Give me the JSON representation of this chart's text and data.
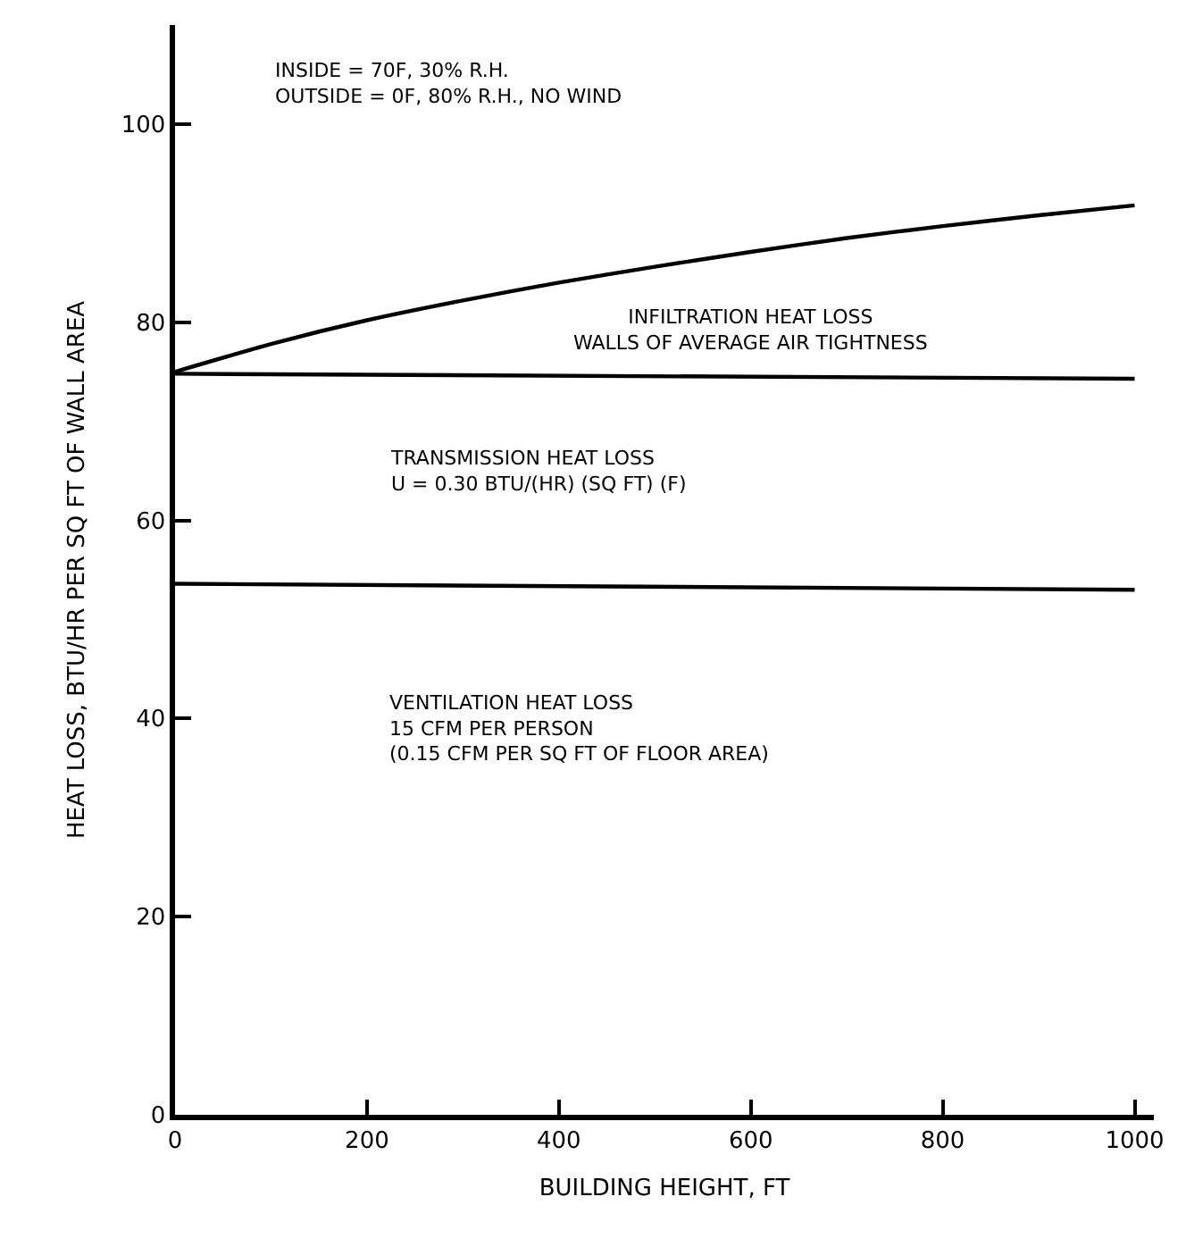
{
  "chart_data": {
    "type": "line",
    "xlabel": "BUILDING HEIGHT, FT",
    "ylabel": "HEAT LOSS, BTU/HR PER SQ FT OF WALL AREA",
    "series": [
      {
        "color": "#000000",
        "x": [
          0,
          1000
        ],
        "values": [
          53.6,
          53.0
        ]
      },
      {
        "color": "#000000",
        "x": [
          0,
          1000
        ],
        "values": [
          74.8,
          74.3
        ]
      },
      {
        "color": "#000000",
        "x": [
          0,
          100,
          200,
          300,
          400,
          500,
          600,
          700,
          800,
          900,
          1000
        ],
        "values": [
          75,
          77.8,
          80.2,
          82.2,
          84.0,
          85.6,
          87.1,
          88.5,
          89.7,
          90.8,
          91.8
        ]
      }
    ],
    "annotations": [
      "INSIDE = 70F, 30% R.H.\nOUTSIDE = 0F, 80% R.H., NO WIND",
      "INFILTRATION HEAT LOSS\nWALLS OF AVERAGE AIR TIGHTNESS",
      "TRANSMISSION HEAT LOSS\nU = 0.30 BTU/(HR) (SQ FT) (F)",
      "VENTILATION HEAT LOSS\n15 CFM PER PERSON\n(0.15 CFM PER SQ FT OF FLOOR AREA)"
    ],
    "xlim": [
      0,
      1020
    ],
    "ylim": [
      0,
      110
    ],
    "xticks": [
      0,
      200,
      400,
      600,
      800,
      1000
    ],
    "yticks": [
      0,
      20,
      40,
      60,
      80,
      100
    ],
    "grid": false,
    "marker": "none",
    "line_style": "solid"
  }
}
